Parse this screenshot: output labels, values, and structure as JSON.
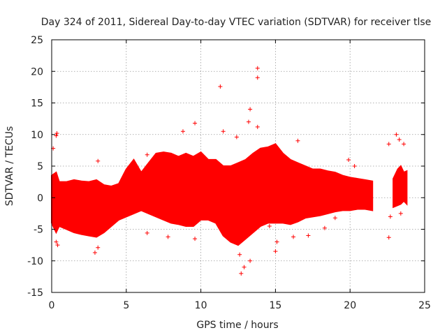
{
  "chart_data": {
    "type": "scatter",
    "title": "Day 324 of 2011, Sidereal Day-to-day VTEC variation (SDTVAR) for receiver tlse",
    "xlabel": "GPS time / hours",
    "ylabel": "SDTVAR / TECUs",
    "xlim": [
      0,
      25
    ],
    "ylim": [
      -15,
      25
    ],
    "xticks": [
      0,
      5,
      10,
      15,
      20,
      25
    ],
    "yticks": [
      -15,
      -10,
      -5,
      0,
      5,
      10,
      15,
      20,
      25
    ],
    "grid": true,
    "marker": "+",
    "color": "#ff0000",
    "series": [
      {
        "name": "SDTVAR",
        "envelope": {
          "x": [
            0.0,
            0.3,
            0.5,
            1.0,
            1.5,
            2.0,
            2.5,
            3.0,
            3.5,
            4.0,
            4.5,
            5.0,
            5.5,
            6.0,
            6.5,
            7.0,
            7.5,
            8.0,
            8.5,
            9.0,
            9.5,
            10.0,
            10.5,
            11.0,
            11.5,
            12.0,
            12.5,
            13.0,
            13.5,
            14.0,
            14.5,
            15.0,
            15.5,
            16.0,
            16.5,
            17.0,
            17.5,
            18.0,
            18.5,
            19.0,
            19.5,
            20.0,
            20.5,
            21.0,
            21.5
          ],
          "upper": [
            3.5,
            4.0,
            2.5,
            2.5,
            2.8,
            2.6,
            2.5,
            2.8,
            2.0,
            1.8,
            2.2,
            4.5,
            6.0,
            4.0,
            5.5,
            7.0,
            7.2,
            7.0,
            6.5,
            7.0,
            6.5,
            7.2,
            6.0,
            6.0,
            5.0,
            5.0,
            5.5,
            6.0,
            7.0,
            7.8,
            8.0,
            8.5,
            7.0,
            6.0,
            5.5,
            5.0,
            4.5,
            4.5,
            4.2,
            4.0,
            3.5,
            3.2,
            3.0,
            2.8,
            2.6
          ],
          "lower": [
            -4.0,
            -5.5,
            -4.5,
            -5.0,
            -5.5,
            -5.8,
            -6.0,
            -6.2,
            -5.5,
            -4.5,
            -3.5,
            -3.0,
            -2.5,
            -2.0,
            -2.5,
            -3.0,
            -3.5,
            -4.0,
            -4.2,
            -4.5,
            -4.5,
            -3.5,
            -3.5,
            -4.0,
            -6.0,
            -7.0,
            -7.5,
            -6.5,
            -5.5,
            -4.5,
            -4.0,
            -4.0,
            -4.0,
            -4.2,
            -3.8,
            -3.2,
            -3.0,
            -2.8,
            -2.5,
            -2.2,
            -2.0,
            -2.0,
            -1.8,
            -1.8,
            -2.0
          ]
        },
        "late_cluster": {
          "x": [
            22.9,
            23.2,
            23.4,
            23.6,
            23.8
          ],
          "upper": [
            3.0,
            4.5,
            5.0,
            4.0,
            4.2
          ],
          "lower": [
            -1.5,
            -1.2,
            -1.0,
            -0.5,
            -1.0
          ]
        },
        "outliers": [
          {
            "x": 0.1,
            "y": 7.8
          },
          {
            "x": 0.3,
            "y": 9.8
          },
          {
            "x": 0.35,
            "y": 10.2
          },
          {
            "x": 0.3,
            "y": -7.0
          },
          {
            "x": 0.4,
            "y": -7.5
          },
          {
            "x": 2.9,
            "y": -8.7
          },
          {
            "x": 3.1,
            "y": -7.9
          },
          {
            "x": 3.1,
            "y": 5.8
          },
          {
            "x": 6.4,
            "y": -5.6
          },
          {
            "x": 6.4,
            "y": 6.8
          },
          {
            "x": 7.8,
            "y": -6.2
          },
          {
            "x": 8.8,
            "y": 10.5
          },
          {
            "x": 9.6,
            "y": -6.5
          },
          {
            "x": 9.6,
            "y": 11.8
          },
          {
            "x": 11.3,
            "y": 17.6
          },
          {
            "x": 11.5,
            "y": 10.5
          },
          {
            "x": 12.4,
            "y": 9.6
          },
          {
            "x": 12.6,
            "y": -9.0
          },
          {
            "x": 12.7,
            "y": -12.0
          },
          {
            "x": 12.9,
            "y": -11.0
          },
          {
            "x": 13.2,
            "y": 12.0
          },
          {
            "x": 13.3,
            "y": 14.0
          },
          {
            "x": 13.3,
            "y": -10.0
          },
          {
            "x": 13.8,
            "y": 19.0
          },
          {
            "x": 13.8,
            "y": 20.5
          },
          {
            "x": 13.8,
            "y": 11.2
          },
          {
            "x": 14.6,
            "y": -4.5
          },
          {
            "x": 15.0,
            "y": -8.5
          },
          {
            "x": 15.1,
            "y": -7.0
          },
          {
            "x": 16.2,
            "y": -6.2
          },
          {
            "x": 16.5,
            "y": 9.0
          },
          {
            "x": 17.2,
            "y": -6.0
          },
          {
            "x": 18.3,
            "y": -4.8
          },
          {
            "x": 19.0,
            "y": -3.2
          },
          {
            "x": 19.9,
            "y": 6.0
          },
          {
            "x": 20.3,
            "y": 5.0
          },
          {
            "x": 22.6,
            "y": 8.5
          },
          {
            "x": 22.6,
            "y": -6.3
          },
          {
            "x": 22.7,
            "y": -3.0
          },
          {
            "x": 23.1,
            "y": 10.0
          },
          {
            "x": 23.3,
            "y": 9.2
          },
          {
            "x": 23.6,
            "y": 8.5
          },
          {
            "x": 23.4,
            "y": -2.5
          }
        ]
      }
    ]
  }
}
